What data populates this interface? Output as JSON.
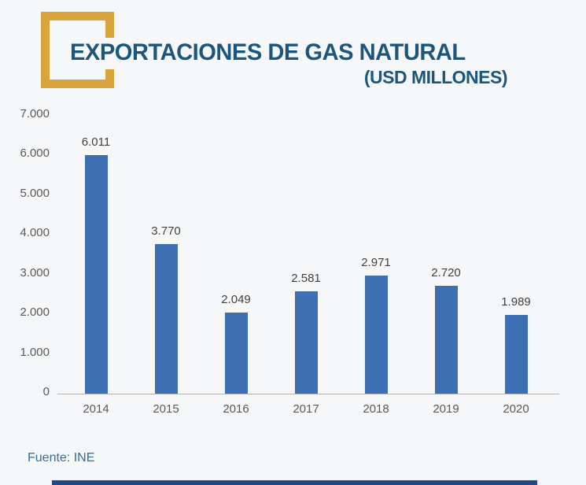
{
  "header": {
    "title": "EXPORTACIONES DE GAS NATURAL",
    "subtitle": "(USD MILLONES)"
  },
  "footer": {
    "source": "Fuente: INE"
  },
  "colors": {
    "background": "#f6f7f9",
    "bar": "#3e6fb2",
    "title_text": "#1c567c",
    "accent_gold": "#d9a43e",
    "axis_text": "#595959",
    "value_text": "#404040",
    "axis_line": "#b3b3b3",
    "source_text": "#2f7096",
    "bottom_bar": "#26487e"
  },
  "chart_data": {
    "type": "bar",
    "title": "EXPORTACIONES DE GAS NATURAL",
    "subtitle": "(USD MILLONES)",
    "xlabel": "",
    "ylabel": "",
    "categories": [
      "2014",
      "2015",
      "2016",
      "2017",
      "2018",
      "2019",
      "2020"
    ],
    "values": [
      6011,
      3770,
      2049,
      2581,
      2971,
      2720,
      1989
    ],
    "value_labels": [
      "6.011",
      "3.770",
      "2.049",
      "2.581",
      "2.971",
      "2.720",
      "1.989"
    ],
    "y_ticks": [
      "7.000",
      "6.000",
      "5.000",
      "4.000",
      "3.000",
      "2.000",
      "1.000",
      "0"
    ],
    "ylim": [
      0,
      7000
    ],
    "grid": false,
    "legend": false,
    "source": "Fuente: INE"
  }
}
